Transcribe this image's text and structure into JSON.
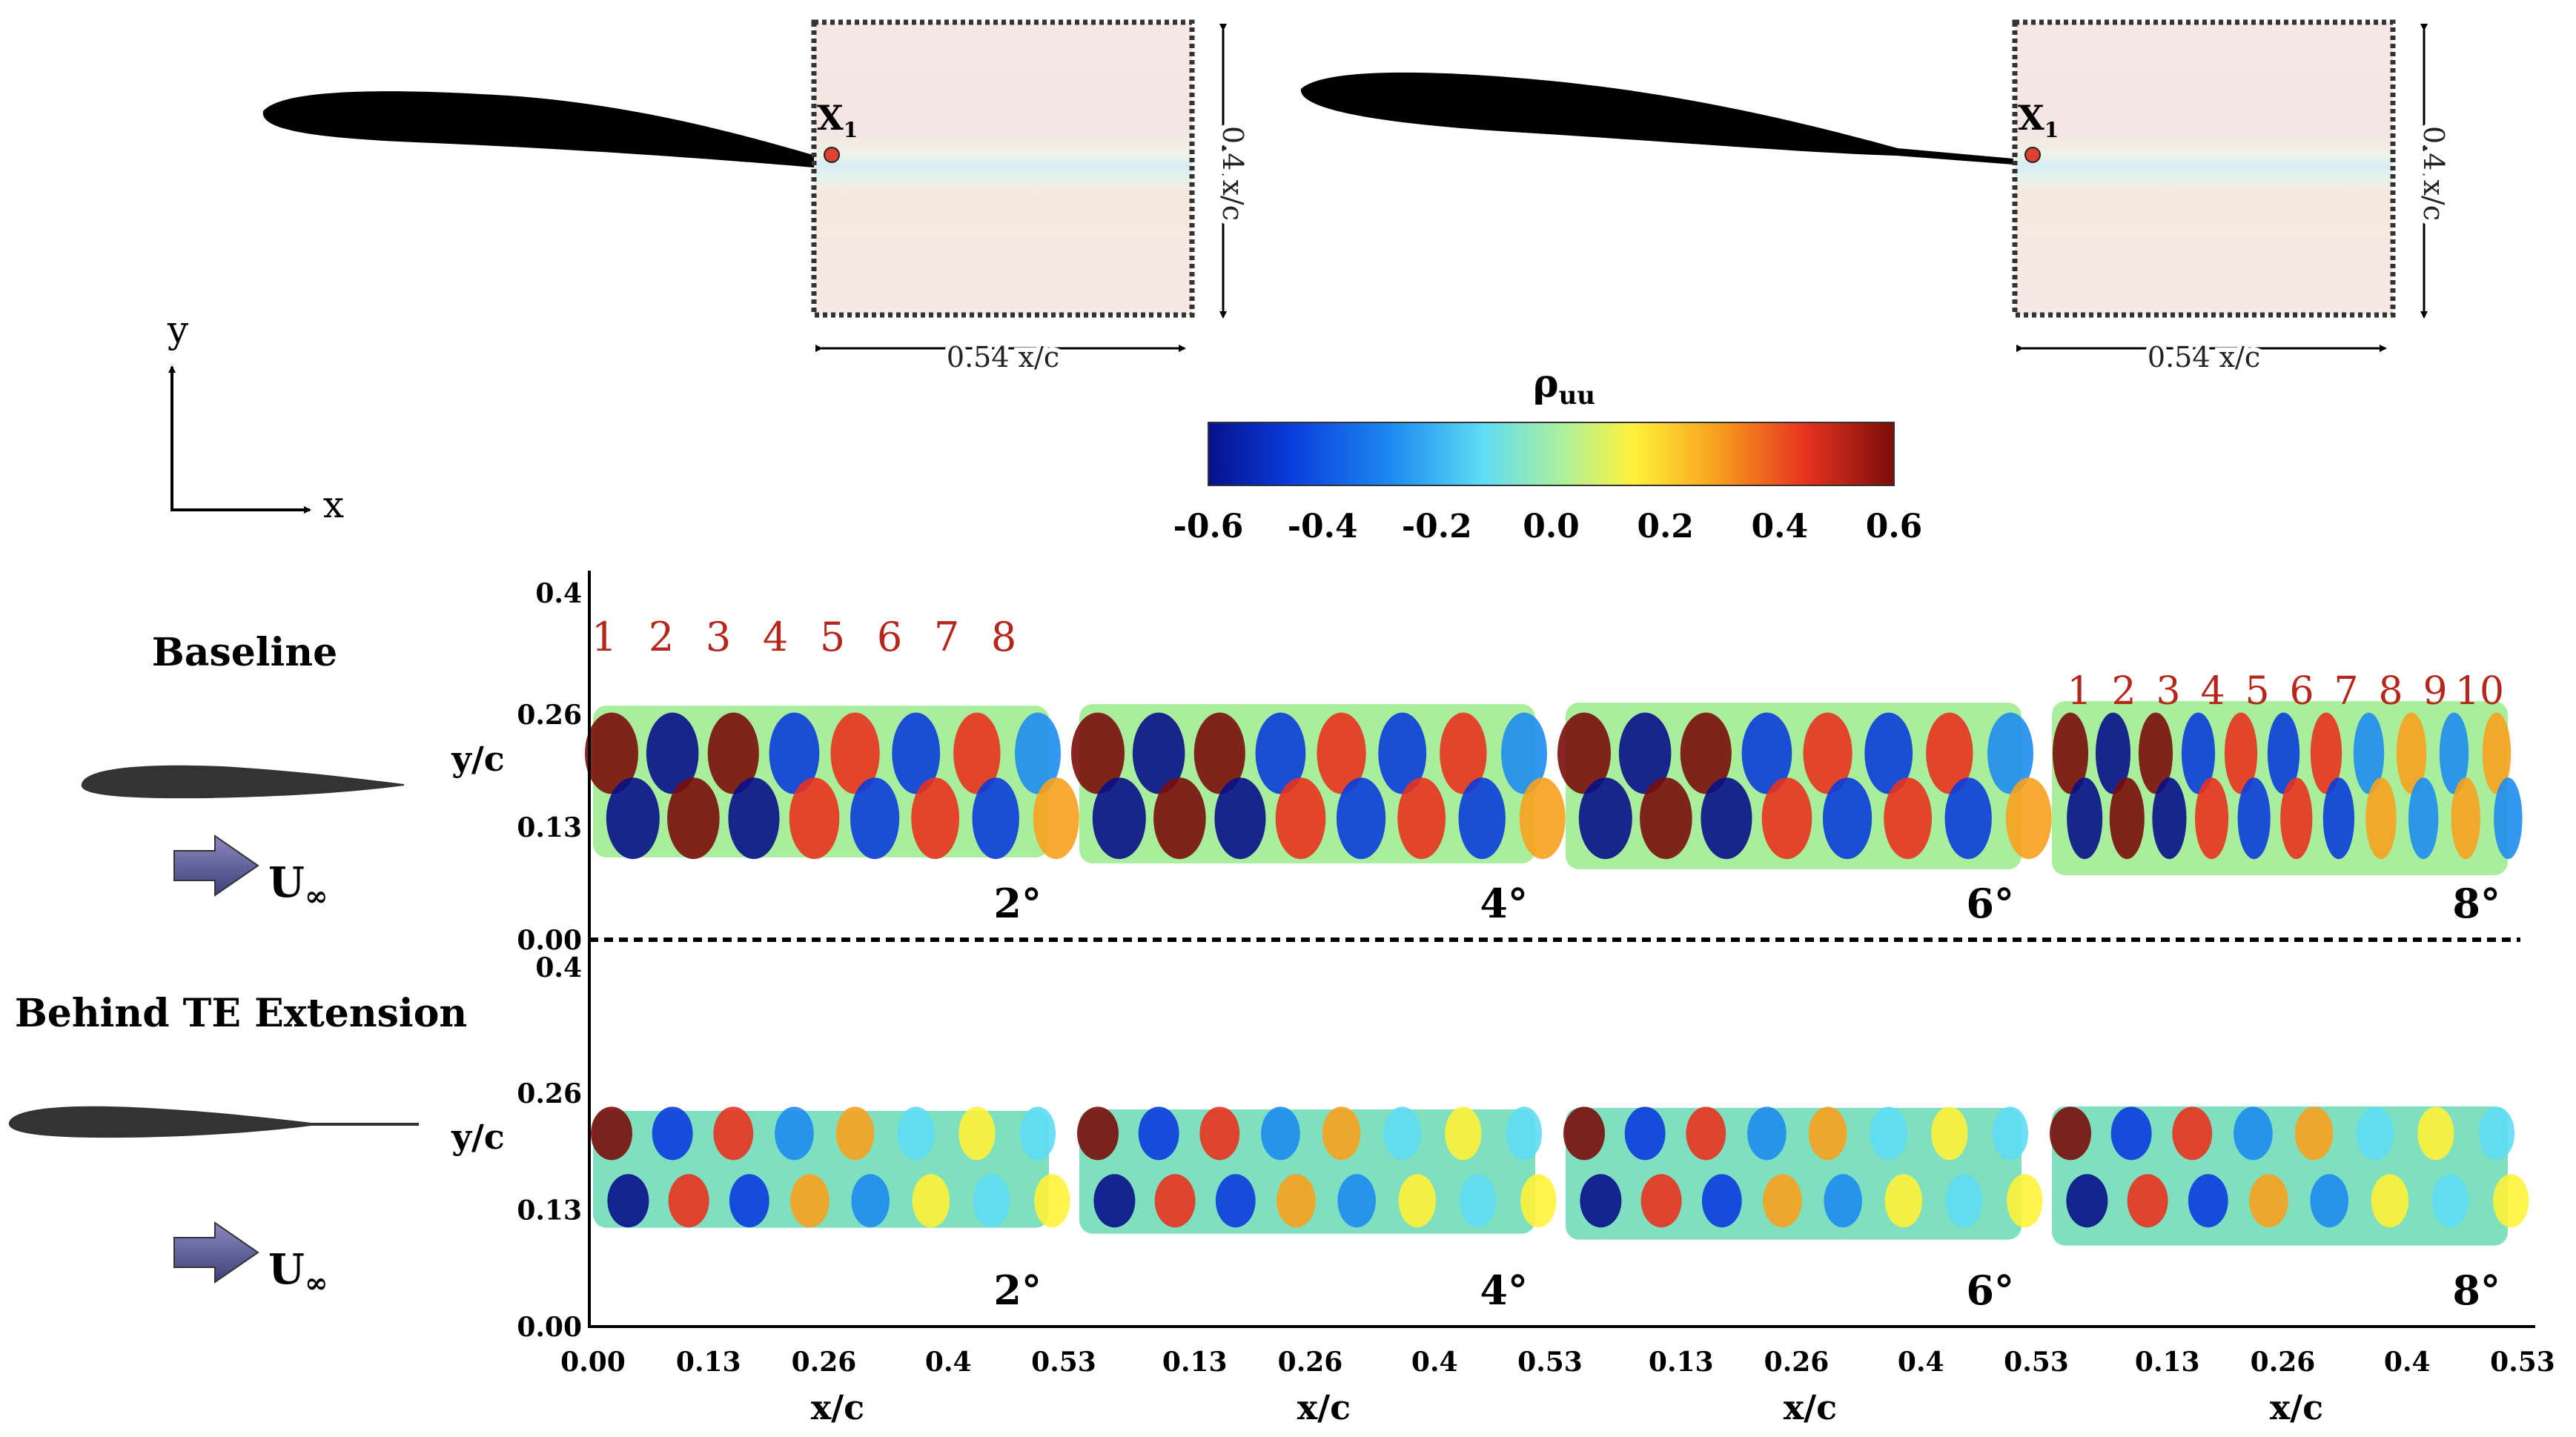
{
  "chart_data": {
    "type": "heatmap",
    "title": "ρuu",
    "colorbar": {
      "label": "ρ",
      "label_sub": "uu",
      "range": [
        -0.6,
        0.6
      ],
      "ticks": [
        "-0.6",
        "-0.4",
        "-0.2",
        "0.0",
        "0.2",
        "0.4",
        "0.6"
      ],
      "colors": [
        "#08108a",
        "#0a3cdc",
        "#1e8cf0",
        "#5fdcf4",
        "#b0f09a",
        "#fff23a",
        "#f7a11e",
        "#e7331f",
        "#7a0d0a"
      ]
    },
    "xlabel": "x/c",
    "ylabel": "y/c",
    "x_ticks": [
      "0.00",
      "0.13",
      "0.26",
      "0.4",
      "0.53"
    ],
    "x_ticks_inner": [
      "0.13",
      "0.26",
      "0.4",
      "0.53"
    ],
    "y_ticks": [
      "0.00",
      "0.13",
      "0.26",
      "0.4"
    ],
    "xlim": [
      0,
      0.53
    ],
    "ylim": [
      0,
      0.4
    ],
    "angles": [
      "2°",
      "4°",
      "6°",
      "8°"
    ],
    "rows": [
      {
        "name": "Baseline",
        "trailing_edge_extension": false
      },
      {
        "name": "Behind TE Extension",
        "trailing_edge_extension": true
      }
    ],
    "vortex_labels_2deg": [
      "1",
      "2",
      "3",
      "4",
      "5",
      "6",
      "7",
      "8"
    ],
    "vortex_labels_8deg": [
      "1",
      "2",
      "3",
      "4",
      "5",
      "6",
      "7",
      "8",
      "9",
      "10"
    ]
  },
  "schematic": {
    "point_label": "X",
    "point_sub": "1",
    "width_label": "0.54 x/c",
    "height_label": "0.4 x/c"
  },
  "axes_icon": {
    "x": "x",
    "y": "y"
  },
  "legend": {
    "baseline_label": "Baseline",
    "te_label": "Behind TE Extension",
    "flow_label": "U",
    "flow_sub": "∞"
  }
}
